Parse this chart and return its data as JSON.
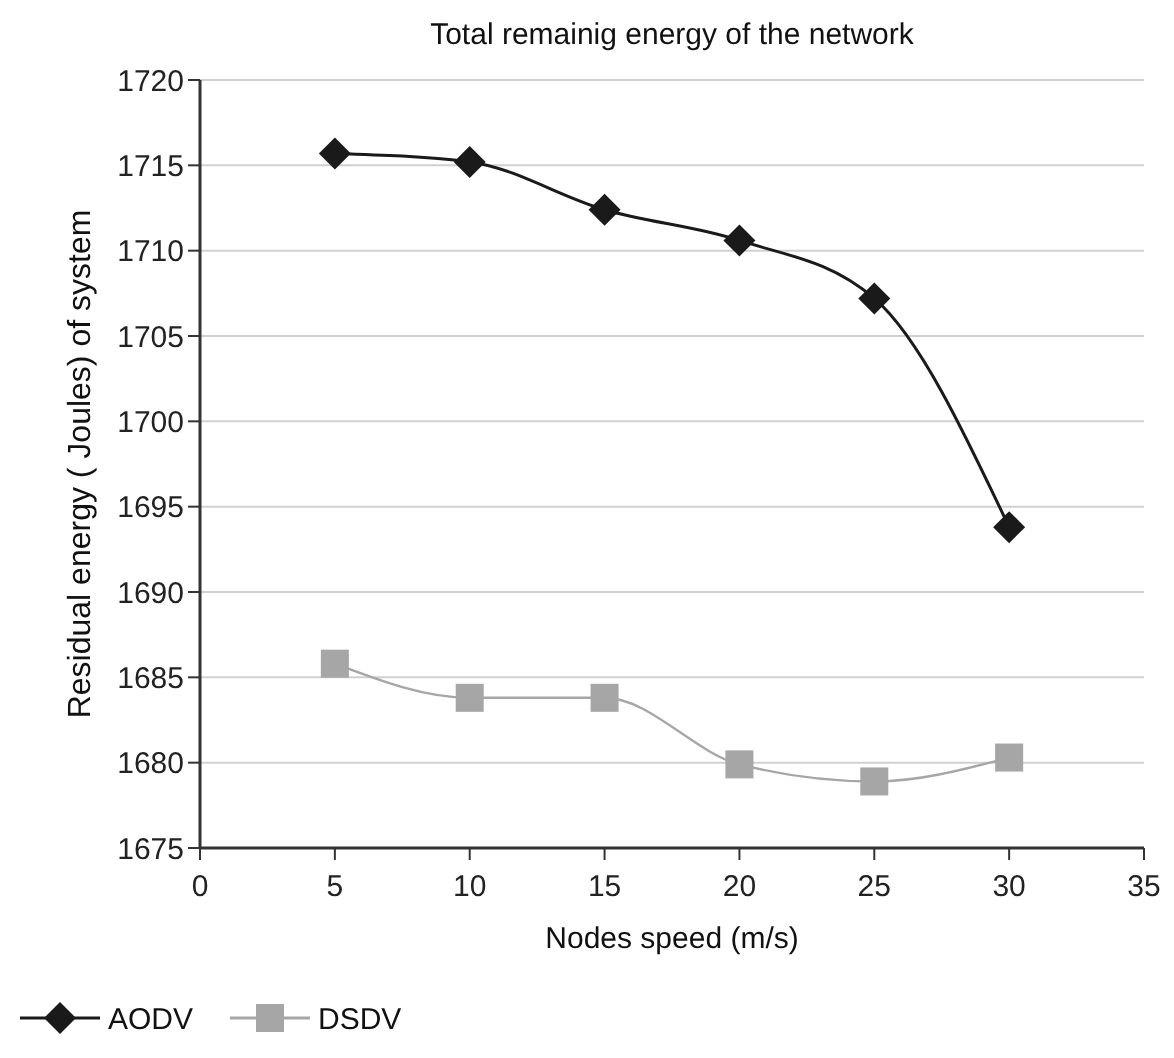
{
  "chart_data": {
    "type": "line",
    "title": "Total remainig energy of the network",
    "xlabel": "Nodes speed (m/s)",
    "ylabel": "Residual energy ( Joules) of system",
    "x": [
      5,
      10,
      15,
      20,
      25,
      30
    ],
    "series": [
      {
        "name": "AODV",
        "color": "#1a1a1a",
        "marker": "diamond",
        "values": [
          1715.7,
          1715.2,
          1712.4,
          1710.6,
          1707.2,
          1693.8
        ]
      },
      {
        "name": "DSDV",
        "color": "#a6a6a6",
        "marker": "square",
        "values": [
          1685.8,
          1683.8,
          1683.8,
          1679.9,
          1678.9,
          1680.3
        ]
      }
    ],
    "xlim": [
      0,
      35
    ],
    "xticks": [
      0,
      5,
      10,
      15,
      20,
      25,
      30,
      35
    ],
    "ylim": [
      1675,
      1720
    ],
    "yticks": [
      1675,
      1680,
      1685,
      1690,
      1695,
      1700,
      1705,
      1710,
      1715,
      1720
    ],
    "grid": "y",
    "legend": "bottom left",
    "line_style": "solid"
  }
}
